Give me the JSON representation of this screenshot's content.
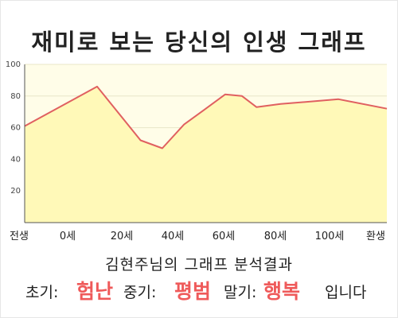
{
  "title": "재미로 보는 당신의 인생 그래프",
  "subtitle": "김현주님의 그래프 분석결과",
  "result": {
    "early_label": "초기:",
    "early_value": "험난",
    "mid_label": "중기:",
    "mid_value": "평범",
    "late_label": "말기:",
    "late_value": "행복",
    "suffix": "입니다"
  },
  "colors": {
    "line": "#e06060",
    "fill": "#fff9b8",
    "plot_bg": "#fffde8",
    "grid": "#e8e6c8",
    "axis": "#555555",
    "highlight": "#ef5a5a"
  },
  "chart_data": {
    "type": "area",
    "x_tick_labels": [
      "전생",
      "0세",
      "20세",
      "40세",
      "60세",
      "80세",
      "100세",
      "환생"
    ],
    "y_ticks": [
      20,
      40,
      60,
      80,
      100
    ],
    "ylim": [
      0,
      100
    ],
    "xlim": [
      -30,
      120
    ],
    "grid": true,
    "x": [
      -30,
      0,
      18,
      27,
      36,
      45,
      53,
      60,
      66,
      76,
      100,
      120
    ],
    "y": [
      61,
      86,
      52,
      47,
      62,
      72,
      81,
      80,
      73,
      75,
      78,
      72
    ]
  }
}
